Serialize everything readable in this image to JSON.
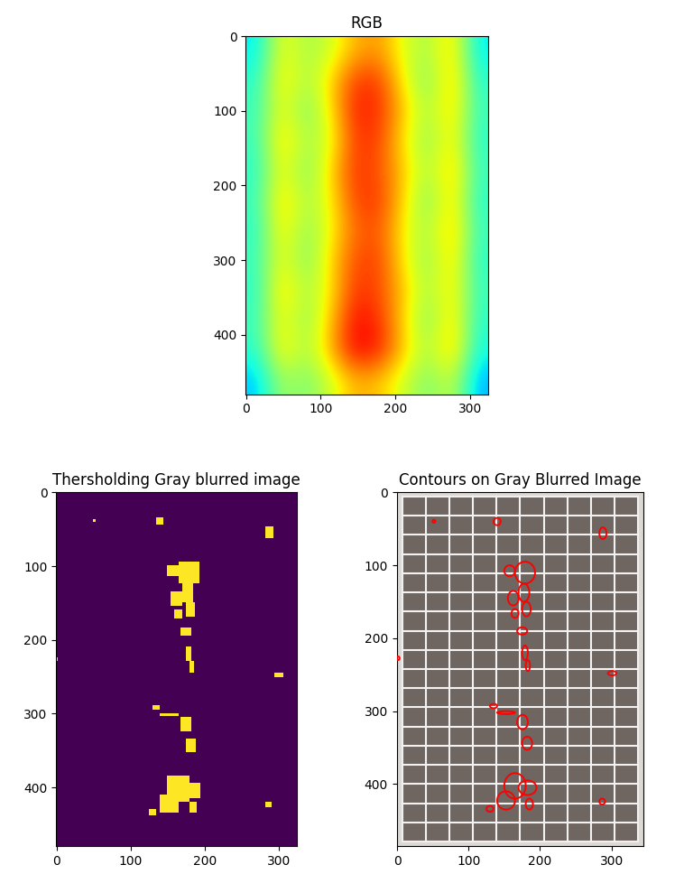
{
  "chart_data": [
    {
      "type": "heatmap",
      "title": "RGB",
      "color": "jet",
      "xlim": [
        -0.5,
        324.5
      ],
      "ylim": [
        479.5,
        -0.5
      ],
      "xticks": [
        0,
        100,
        200,
        300
      ],
      "yticks": [
        0,
        100,
        200,
        300,
        400
      ],
      "value_range": [
        0,
        1
      ],
      "cells": [
        [
          0.35,
          0.65,
          0.55,
          0.6,
          0.72,
          0.75,
          0.62,
          0.55,
          0.7,
          0.35
        ],
        [
          0.4,
          0.68,
          0.55,
          0.68,
          0.85,
          0.85,
          0.65,
          0.5,
          0.72,
          0.4
        ],
        [
          0.42,
          0.65,
          0.5,
          0.66,
          0.88,
          0.86,
          0.7,
          0.55,
          0.7,
          0.42
        ],
        [
          0.42,
          0.7,
          0.55,
          0.62,
          0.85,
          0.84,
          0.66,
          0.52,
          0.68,
          0.4
        ],
        [
          0.4,
          0.66,
          0.5,
          0.68,
          0.86,
          0.82,
          0.7,
          0.55,
          0.72,
          0.42
        ],
        [
          0.42,
          0.7,
          0.55,
          0.65,
          0.84,
          0.85,
          0.68,
          0.5,
          0.7,
          0.4
        ],
        [
          0.4,
          0.68,
          0.52,
          0.64,
          0.8,
          0.82,
          0.65,
          0.55,
          0.72,
          0.42
        ],
        [
          0.42,
          0.65,
          0.5,
          0.68,
          0.83,
          0.84,
          0.66,
          0.52,
          0.7,
          0.4
        ],
        [
          0.4,
          0.7,
          0.55,
          0.66,
          0.86,
          0.83,
          0.7,
          0.55,
          0.68,
          0.42
        ],
        [
          0.42,
          0.66,
          0.52,
          0.7,
          0.9,
          0.86,
          0.68,
          0.5,
          0.7,
          0.4
        ],
        [
          0.4,
          0.68,
          0.55,
          0.72,
          0.92,
          0.88,
          0.7,
          0.55,
          0.72,
          0.38
        ],
        [
          0.32,
          0.55,
          0.5,
          0.6,
          0.72,
          0.7,
          0.6,
          0.5,
          0.6,
          0.3
        ]
      ]
    },
    {
      "type": "mask",
      "title": "Thersholding Gray blurred image",
      "color": "viridis",
      "xlim": [
        -0.5,
        324.5
      ],
      "ylim": [
        479.5,
        -0.5
      ],
      "xticks": [
        0,
        100,
        200,
        300
      ],
      "yticks": [
        0,
        100,
        200,
        300,
        400
      ],
      "regions": [
        [
          50,
          38,
          3,
          3
        ],
        [
          135,
          35,
          10,
          10
        ],
        [
          283,
          48,
          10,
          16
        ],
        [
          150,
          100,
          15,
          15
        ],
        [
          165,
          95,
          28,
          30
        ],
        [
          170,
          125,
          15,
          25
        ],
        [
          155,
          135,
          15,
          20
        ],
        [
          175,
          150,
          12,
          20
        ],
        [
          160,
          160,
          10,
          12
        ],
        [
          168,
          185,
          14,
          10
        ],
        [
          175,
          210,
          8,
          20
        ],
        [
          180,
          230,
          6,
          15
        ],
        [
          295,
          245,
          12,
          6
        ],
        [
          0,
          225,
          3,
          5
        ],
        [
          130,
          290,
          10,
          6
        ],
        [
          140,
          300,
          25,
          4
        ],
        [
          168,
          305,
          15,
          20
        ],
        [
          175,
          335,
          14,
          18
        ],
        [
          150,
          385,
          30,
          35
        ],
        [
          140,
          410,
          25,
          25
        ],
        [
          170,
          395,
          25,
          20
        ],
        [
          180,
          420,
          10,
          15
        ],
        [
          125,
          430,
          10,
          8
        ],
        [
          283,
          420,
          8,
          8
        ]
      ]
    },
    {
      "type": "contours",
      "title": "Contours on Gray Blurred Image",
      "color": "red",
      "xlim": [
        -0.5,
        345
      ],
      "ylim": [
        485,
        -0.5
      ],
      "xticks": [
        0,
        100,
        200,
        300
      ],
      "yticks": [
        0,
        100,
        200,
        300,
        400
      ],
      "regions": [
        [
          50,
          38,
          3,
          3
        ],
        [
          135,
          35,
          10,
          10
        ],
        [
          283,
          48,
          10,
          16
        ],
        [
          150,
          100,
          15,
          15
        ],
        [
          165,
          95,
          28,
          30
        ],
        [
          170,
          125,
          15,
          25
        ],
        [
          155,
          135,
          15,
          20
        ],
        [
          175,
          150,
          12,
          20
        ],
        [
          160,
          160,
          10,
          12
        ],
        [
          168,
          185,
          14,
          10
        ],
        [
          175,
          210,
          8,
          20
        ],
        [
          180,
          230,
          6,
          15
        ],
        [
          295,
          245,
          12,
          6
        ],
        [
          0,
          225,
          3,
          5
        ],
        [
          130,
          290,
          10,
          6
        ],
        [
          140,
          300,
          25,
          4
        ],
        [
          168,
          305,
          15,
          20
        ],
        [
          175,
          335,
          14,
          18
        ],
        [
          150,
          385,
          30,
          35
        ],
        [
          140,
          410,
          25,
          25
        ],
        [
          170,
          395,
          25,
          20
        ],
        [
          180,
          420,
          10,
          15
        ],
        [
          125,
          430,
          10,
          8
        ],
        [
          283,
          420,
          8,
          8
        ]
      ]
    }
  ]
}
